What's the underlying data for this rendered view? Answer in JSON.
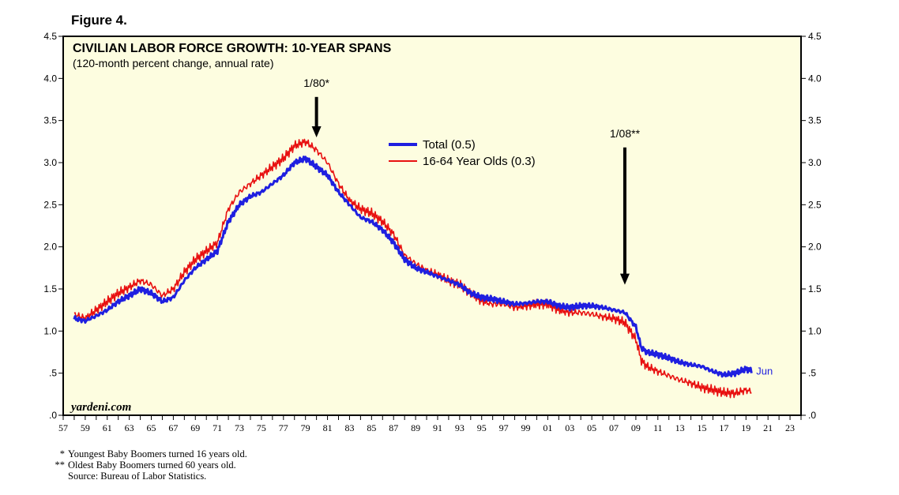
{
  "figure_label": "Figure 4.",
  "chart_data": {
    "type": "line",
    "title": "CIVILIAN LABOR FORCE GROWTH: 10-YEAR SPANS",
    "subtitle": "(120-month percent change, annual rate)",
    "xlabel": "",
    "ylabel": "",
    "xlim": [
      1957,
      2024
    ],
    "ylim": [
      0,
      4.5
    ],
    "grid": false,
    "legend_position": "top-center",
    "y_ticks": [
      0,
      0.5,
      1.0,
      1.5,
      2.0,
      2.5,
      3.0,
      3.5,
      4.0,
      4.5
    ],
    "y_tick_labels": [
      ".0",
      ".5",
      "1.0",
      "1.5",
      "2.0",
      "2.5",
      "3.0",
      "3.5",
      "4.0",
      "4.5"
    ],
    "x_tick_labels": [
      "57",
      "59",
      "61",
      "63",
      "65",
      "67",
      "69",
      "71",
      "73",
      "75",
      "77",
      "79",
      "81",
      "83",
      "85",
      "87",
      "89",
      "91",
      "93",
      "95",
      "97",
      "99",
      "01",
      "03",
      "05",
      "07",
      "09",
      "11",
      "13",
      "15",
      "17",
      "19",
      "21",
      "23"
    ],
    "series": [
      {
        "name": "Total (0.5)",
        "color": "#1f1fe0",
        "x": [
          1958.0,
          1959.0,
          1960.0,
          1961.0,
          1962.0,
          1963.0,
          1964.0,
          1965.0,
          1966.0,
          1967.0,
          1968.0,
          1969.0,
          1970.0,
          1971.0,
          1972.0,
          1973.0,
          1974.0,
          1975.0,
          1976.0,
          1977.0,
          1978.0,
          1979.0,
          1980.0,
          1981.0,
          1982.0,
          1983.0,
          1984.0,
          1985.0,
          1986.0,
          1987.0,
          1988.0,
          1989.0,
          1990.0,
          1991.0,
          1992.0,
          1993.0,
          1994.0,
          1995.0,
          1996.0,
          1997.0,
          1998.0,
          1999.0,
          2000.0,
          2001.0,
          2002.0,
          2003.0,
          2004.0,
          2005.0,
          2006.0,
          2007.0,
          2008.0,
          2009.0,
          2009.5,
          2010.0,
          2011.0,
          2012.0,
          2013.0,
          2014.0,
          2015.0,
          2016.0,
          2017.0,
          2018.0,
          2019.0,
          2019.5
        ],
        "values": [
          1.15,
          1.12,
          1.18,
          1.25,
          1.35,
          1.42,
          1.5,
          1.45,
          1.35,
          1.4,
          1.6,
          1.75,
          1.85,
          1.95,
          2.3,
          2.5,
          2.6,
          2.65,
          2.75,
          2.85,
          3.0,
          3.05,
          2.95,
          2.85,
          2.65,
          2.5,
          2.35,
          2.3,
          2.2,
          2.05,
          1.85,
          1.75,
          1.7,
          1.65,
          1.6,
          1.55,
          1.45,
          1.4,
          1.38,
          1.35,
          1.32,
          1.33,
          1.35,
          1.35,
          1.3,
          1.28,
          1.3,
          1.3,
          1.28,
          1.25,
          1.22,
          1.05,
          0.8,
          0.75,
          0.72,
          0.68,
          0.63,
          0.6,
          0.58,
          0.52,
          0.48,
          0.5,
          0.55,
          0.53
        ]
      },
      {
        "name": "16-64 Year Olds (0.3)",
        "color": "#e81010",
        "x": [
          1958.0,
          1959.0,
          1960.0,
          1961.0,
          1962.0,
          1963.0,
          1964.0,
          1965.0,
          1966.0,
          1967.0,
          1968.0,
          1969.0,
          1970.0,
          1971.0,
          1972.0,
          1973.0,
          1974.0,
          1975.0,
          1976.0,
          1977.0,
          1978.0,
          1979.0,
          1980.0,
          1981.0,
          1982.0,
          1983.0,
          1984.0,
          1985.0,
          1986.0,
          1987.0,
          1988.0,
          1989.0,
          1990.0,
          1991.0,
          1992.0,
          1993.0,
          1994.0,
          1995.0,
          1996.0,
          1997.0,
          1998.0,
          1999.0,
          2000.0,
          2001.0,
          2002.0,
          2003.0,
          2004.0,
          2005.0,
          2006.0,
          2007.0,
          2008.0,
          2009.0,
          2009.5,
          2010.0,
          2011.0,
          2012.0,
          2013.0,
          2014.0,
          2015.0,
          2016.0,
          2017.0,
          2018.0,
          2019.0,
          2019.5
        ],
        "values": [
          1.2,
          1.15,
          1.25,
          1.35,
          1.45,
          1.52,
          1.6,
          1.55,
          1.42,
          1.5,
          1.7,
          1.85,
          1.95,
          2.05,
          2.45,
          2.65,
          2.75,
          2.85,
          2.95,
          3.05,
          3.2,
          3.25,
          3.15,
          3.0,
          2.75,
          2.55,
          2.45,
          2.4,
          2.3,
          2.15,
          1.9,
          1.8,
          1.72,
          1.67,
          1.6,
          1.55,
          1.45,
          1.35,
          1.32,
          1.32,
          1.28,
          1.3,
          1.32,
          1.32,
          1.25,
          1.22,
          1.22,
          1.2,
          1.17,
          1.15,
          1.1,
          0.9,
          0.65,
          0.58,
          0.52,
          0.47,
          0.42,
          0.38,
          0.33,
          0.3,
          0.27,
          0.26,
          0.3,
          0.28
        ]
      }
    ],
    "annotations": [
      {
        "label": "1/80*",
        "x": 1980.0,
        "y_from": 3.78,
        "y_to": 3.3
      },
      {
        "label": "1/08**",
        "x": 2008.0,
        "y_from": 3.18,
        "y_to": 1.55
      },
      {
        "label": "Jun",
        "x": 2019.5,
        "y": 0.53
      }
    ],
    "watermark": "yardeni.com"
  },
  "footnotes": [
    {
      "marker": "*",
      "text": "Youngest Baby Boomers turned 16 years old."
    },
    {
      "marker": "**",
      "text": "Oldest Baby Boomers turned 60 years old."
    },
    {
      "marker": "",
      "text": "Source: Bureau of Labor Statistics."
    }
  ],
  "colors": {
    "plot_background": "#fdfde0",
    "total": "#1f1fe0",
    "ages_16_64": "#e81010",
    "text": "#000000"
  }
}
